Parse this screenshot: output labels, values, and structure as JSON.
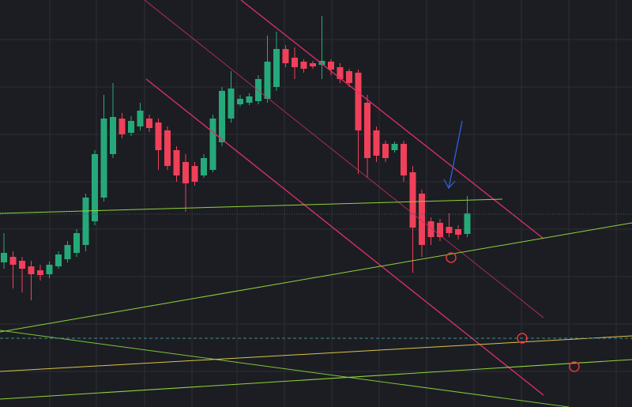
{
  "chart_data": {
    "type": "candlestick",
    "up_color": "#26a97a",
    "down_color": "#f0405a",
    "ylim": [
      0,
      515
    ],
    "open": [
      183,
      190,
      185,
      178,
      173,
      168,
      178,
      187,
      195,
      205,
      235,
      265,
      320,
      365,
      347,
      355,
      365,
      360,
      350,
      325,
      310,
      305,
      293,
      300,
      335,
      365,
      383,
      385,
      387,
      390,
      405,
      453,
      442,
      437,
      435,
      433,
      437,
      430,
      425,
      423,
      385,
      350,
      333,
      325,
      333,
      297,
      270,
      235,
      233,
      228,
      225,
      219
    ],
    "high": [
      220,
      197,
      190,
      185,
      180,
      184,
      197,
      210,
      225,
      270,
      325,
      395,
      410,
      372,
      368,
      385,
      370,
      365,
      355,
      330,
      320,
      310,
      320,
      370,
      405,
      425,
      395,
      397,
      420,
      470,
      475,
      458,
      455,
      440,
      438,
      495,
      440,
      435,
      428,
      427,
      395,
      355,
      337,
      336,
      337,
      305,
      275,
      240,
      238,
      245,
      230,
      267
    ],
    "low": [
      175,
      150,
      145,
      135,
      160,
      163,
      175,
      183,
      190,
      197,
      230,
      260,
      315,
      340,
      343,
      350,
      348,
      300,
      300,
      285,
      247,
      280,
      290,
      297,
      330,
      360,
      380,
      382,
      383,
      385,
      400,
      430,
      415,
      423,
      428,
      415,
      420,
      410,
      405,
      295,
      290,
      310,
      310,
      322,
      285,
      170,
      190,
      205,
      210,
      215,
      212,
      215
    ],
    "close": [
      195,
      180,
      175,
      168,
      167,
      180,
      193,
      205,
      220,
      265,
      320,
      365,
      367,
      345,
      362,
      375,
      353,
      325,
      305,
      293,
      283,
      285,
      315,
      365,
      400,
      403,
      390,
      393,
      415,
      437,
      453,
      435,
      430,
      428,
      431,
      438,
      427,
      415,
      410,
      350,
      315,
      318,
      315,
      333,
      293,
      227,
      205,
      215,
      215,
      220,
      218,
      245
    ]
  }
}
